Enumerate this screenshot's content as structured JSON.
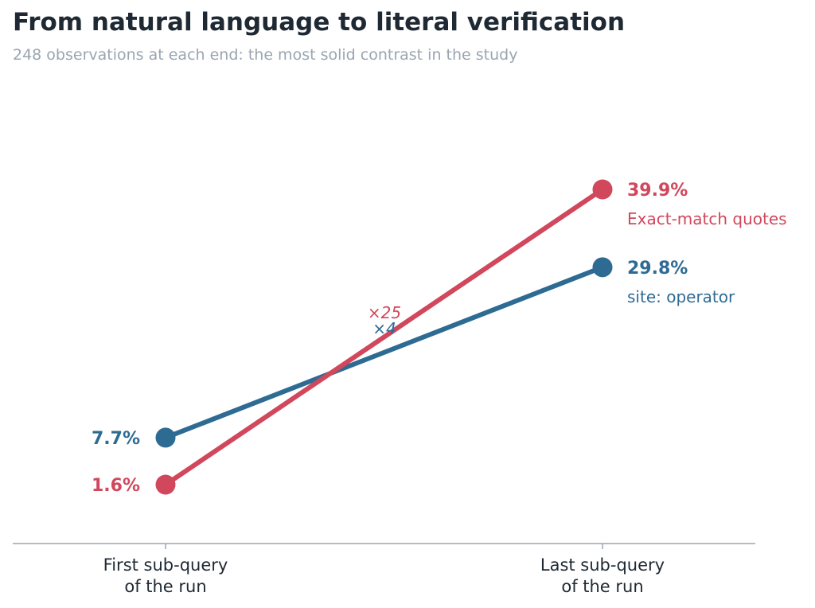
{
  "title": "From natural language to literal verification",
  "subtitle": "248 observations at each end: the most solid contrast in the study",
  "chart_data": {
    "type": "line",
    "x": [
      "First sub-query\nof the run",
      "Last sub-query\nof the run"
    ],
    "ylim": [
      0,
      45
    ],
    "grid": false,
    "series": [
      {
        "name": "Exact-match quotes",
        "values": [
          1.6,
          39.9
        ],
        "value_labels": [
          "1.6%",
          "39.9%"
        ],
        "ratio_label": "×25",
        "color": "#d1475c"
      },
      {
        "name": "site: operator",
        "values": [
          7.7,
          29.8
        ],
        "value_labels": [
          "7.7%",
          "29.8%"
        ],
        "ratio_label": "×4",
        "color": "#2e6b93"
      }
    ]
  }
}
